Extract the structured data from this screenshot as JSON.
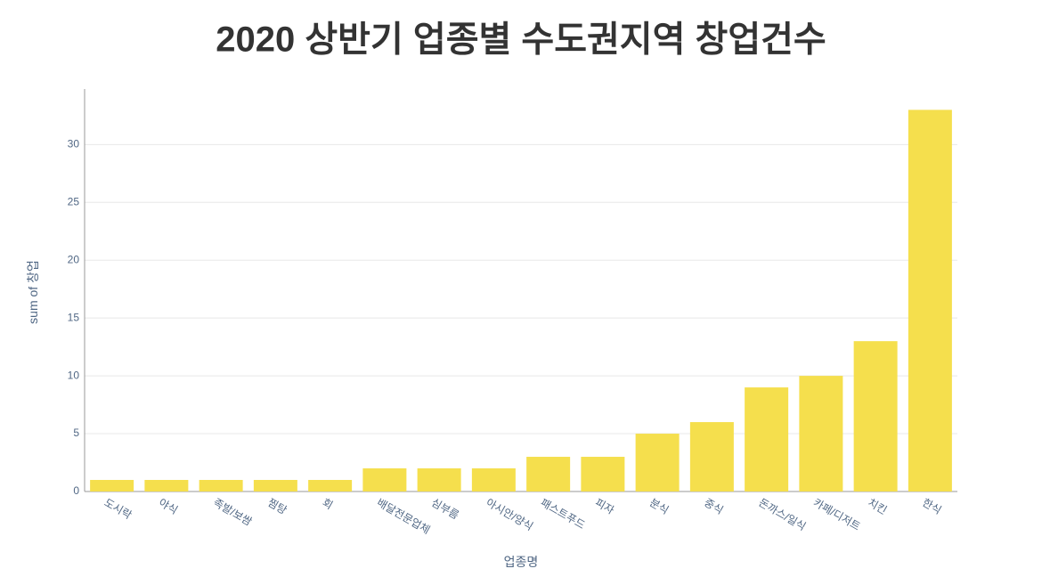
{
  "chart_data": {
    "type": "bar",
    "title": "2020 상반기 업종별 수도권지역 창업건수",
    "x_label": "업종명",
    "y_label": "sum of 창업",
    "categories": [
      "도시락",
      "야식",
      "족발/보쌈",
      "찜탕",
      "회",
      "배달전문업체",
      "심부름",
      "아시안/양식",
      "패스트푸드",
      "피자",
      "분식",
      "중식",
      "돈까스/일식",
      "카페/디저트",
      "치킨",
      "한식"
    ],
    "values": [
      1,
      1,
      1,
      1,
      1,
      2,
      2,
      2,
      3,
      3,
      5,
      6,
      9,
      10,
      13,
      33
    ],
    "color": "#f5df4d",
    "ylim": [
      0,
      34.8
    ],
    "yticks": [
      0,
      5,
      10,
      15,
      20,
      25,
      30
    ],
    "grid": true
  }
}
